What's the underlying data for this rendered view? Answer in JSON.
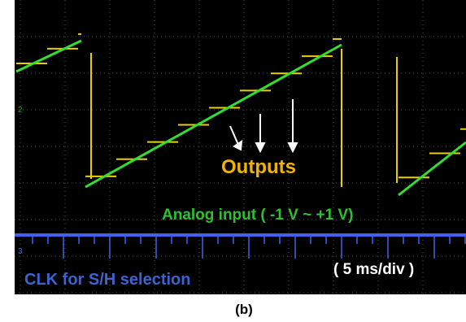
{
  "screen": {
    "channel_markers": [
      "2",
      "3"
    ],
    "outputs_label": "Outputs",
    "input_label": "Analog input ( -1 V ~ +1 V)",
    "clk_label": "CLK for S/H selection",
    "timebase_label": "( 5 ms/div )"
  },
  "caption": "(b)"
}
